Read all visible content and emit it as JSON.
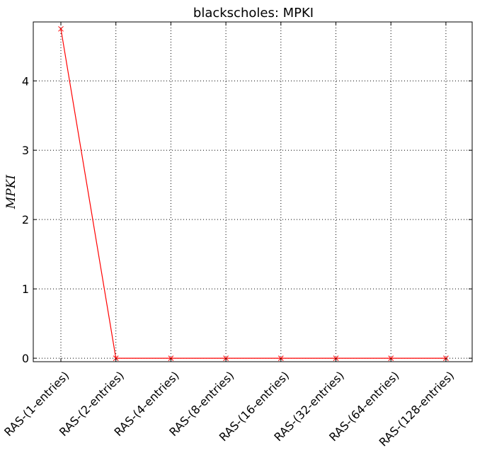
{
  "chart_data": {
    "type": "line",
    "title": "blackscholes: MPKI",
    "xlabel": "",
    "ylabel": "MPKI",
    "categories": [
      "RAS-(1-entries)",
      "RAS-(2-entries)",
      "RAS-(4-entries)",
      "RAS-(8-entries)",
      "RAS-(16-entries)",
      "RAS-(32-entries)",
      "RAS-(64-entries)",
      "RAS-(128-entries)"
    ],
    "series": [
      {
        "values": [
          4.75,
          0,
          0,
          0,
          0,
          0,
          0,
          0
        ],
        "color": "#ff0000",
        "marker": "x"
      }
    ],
    "ylim": [
      -0.05,
      4.85
    ],
    "yticks": [
      0,
      1,
      2,
      3,
      4
    ],
    "grid": true
  }
}
